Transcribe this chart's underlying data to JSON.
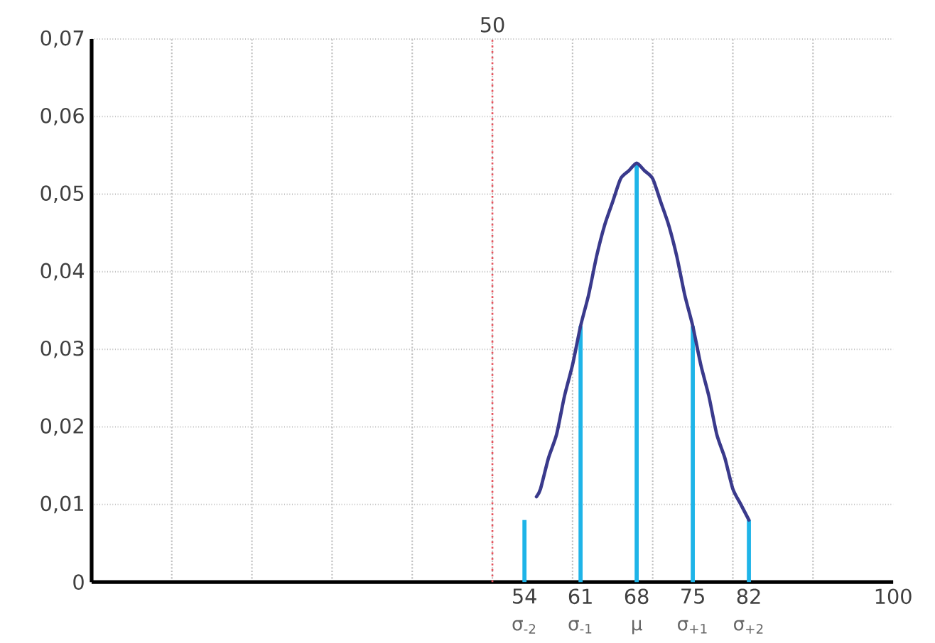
{
  "chart_data": {
    "type": "line",
    "xlim": [
      0,
      100
    ],
    "ylim": [
      0,
      0.07
    ],
    "xticks": [
      {
        "value": 10,
        "label": null
      },
      {
        "value": 20,
        "label": null
      },
      {
        "value": 30,
        "label": null
      },
      {
        "value": 40,
        "label": null
      },
      {
        "value": 50,
        "label": null
      },
      {
        "value": 60,
        "label": null
      },
      {
        "value": 70,
        "label": null
      },
      {
        "value": 80,
        "label": null
      },
      {
        "value": 90,
        "label": null
      },
      54,
      61,
      68,
      75,
      82,
      100
    ],
    "yticks": [
      0,
      {
        "value": 0.01,
        "label": "0,01"
      },
      {
        "value": 0.02,
        "label": "0,02"
      },
      {
        "value": 0.03,
        "label": "0,03"
      },
      {
        "value": 0.04,
        "label": "0,04"
      },
      {
        "value": 0.05,
        "label": "0,05"
      },
      {
        "value": 0.06,
        "label": "0,06"
      },
      {
        "value": 0.07,
        "label": "0,07"
      }
    ],
    "grid": true,
    "series": [
      {
        "color": "#3a3a8c",
        "x": [
          55.5,
          56,
          57,
          58,
          59,
          60,
          61,
          62,
          63,
          64,
          65,
          66,
          67,
          68,
          69,
          70,
          71,
          72,
          73,
          74,
          75,
          76,
          77,
          78,
          79,
          80,
          81,
          82
        ],
        "values": [
          0.011,
          0.012,
          0.016,
          0.019,
          0.024,
          0.028,
          0.033,
          0.037,
          0.042,
          0.046,
          0.049,
          0.052,
          0.053,
          0.054,
          0.053,
          0.052,
          0.049,
          0.046,
          0.042,
          0.037,
          0.033,
          0.028,
          0.024,
          0.019,
          0.016,
          0.012,
          0.01,
          0.008
        ]
      },
      {
        "type": "bar",
        "color": "#1eb4e8",
        "x": [
          54,
          61,
          68,
          75,
          82
        ],
        "values": [
          0.008,
          0.033,
          0.054,
          0.033,
          0.008
        ]
      }
    ],
    "ref_lines": [
      {
        "axis": "x",
        "value": 50,
        "label": "50",
        "color": "#e8505a",
        "line_style": "dotted"
      }
    ],
    "annotations": [
      {
        "text": "σ$_{-2}$",
        "x": 54,
        "y": 0
      },
      {
        "text": "σ$_{-1}$",
        "x": 61,
        "y": 0
      },
      {
        "text": "μ",
        "x": 68,
        "y": 0
      },
      {
        "text": "σ$_{+1}$",
        "x": 75,
        "y": 0
      },
      {
        "text": "σ$_{+2}$",
        "x": 82,
        "y": 0
      }
    ]
  }
}
